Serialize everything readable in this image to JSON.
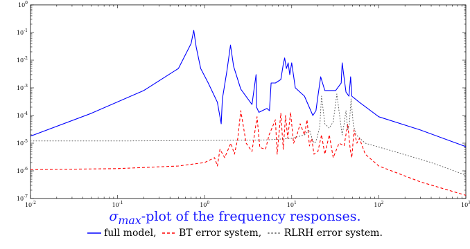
{
  "chart_data": {
    "type": "line",
    "title": "σmax-plot of the frequency responses.",
    "title_parts": {
      "symbol": "σ",
      "subscript": "max",
      "rest": "-plot of the frequency responses."
    },
    "xscale": "log",
    "yscale": "log",
    "xlim": [
      0.01,
      1000
    ],
    "ylim": [
      1e-07,
      1
    ],
    "grid": false,
    "x_tick_labels": [
      {
        "base": "10",
        "exp": "-2"
      },
      {
        "base": "10",
        "exp": "-1"
      },
      {
        "base": "10",
        "exp": "0"
      },
      {
        "base": "10",
        "exp": "1"
      },
      {
        "base": "10",
        "exp": "2"
      },
      {
        "base": "10",
        "exp": "3"
      }
    ],
    "y_tick_labels": [
      {
        "base": "10",
        "exp": "0"
      },
      {
        "base": "10",
        "exp": "-1"
      },
      {
        "base": "10",
        "exp": "-2"
      },
      {
        "base": "10",
        "exp": "-3"
      },
      {
        "base": "10",
        "exp": "-4"
      },
      {
        "base": "10",
        "exp": "-5"
      },
      {
        "base": "10",
        "exp": "-6"
      },
      {
        "base": "10",
        "exp": "-7"
      }
    ],
    "legend_position": "bottom",
    "series": [
      {
        "name": "full model,",
        "color": "#0000ff",
        "dash": "solid",
        "x": [
          0.01,
          0.05,
          0.2,
          0.5,
          0.7,
          0.75,
          0.8,
          0.9,
          1.1,
          1.4,
          1.55,
          1.6,
          1.8,
          1.98,
          2.15,
          2.6,
          3.5,
          3.9,
          3.95,
          4.2,
          5.2,
          5.55,
          5.8,
          6.5,
          7.5,
          8.0,
          8.3,
          8.7,
          9.1,
          9.5,
          10.0,
          11.0,
          14.0,
          17.5,
          19.0,
          20.0,
          21.5,
          24.0,
          32.0,
          37.0,
          38.0,
          42.0,
          45.5,
          47.5,
          49.0,
          60.0,
          100.0,
          300.0,
          1000.0
        ],
        "y": [
          1.8e-05,
          0.00012,
          0.0008,
          0.005,
          0.04,
          0.12,
          0.03,
          0.005,
          0.0015,
          0.0003,
          5e-05,
          0.0004,
          0.004,
          0.035,
          0.006,
          0.0009,
          0.00025,
          0.003,
          0.0002,
          0.00013,
          0.00018,
          0.00015,
          0.0015,
          0.0015,
          0.002,
          0.007,
          0.012,
          0.005,
          0.008,
          0.003,
          0.008,
          0.001,
          0.0005,
          0.0001,
          0.00015,
          0.0005,
          0.0025,
          0.0008,
          0.0008,
          0.0015,
          0.008,
          0.0007,
          0.0005,
          0.0025,
          0.0005,
          0.0003,
          9e-05,
          3e-05,
          7.5e-06
        ]
      },
      {
        "name": "BT error system,",
        "color": "#ff0000",
        "dash": "dashed",
        "x": [
          0.01,
          0.1,
          0.5,
          1.0,
          1.3,
          1.4,
          1.5,
          1.7,
          2.0,
          2.2,
          2.4,
          2.6,
          3.0,
          3.5,
          4.0,
          4.3,
          5.0,
          5.5,
          6.5,
          6.8,
          7.5,
          8.0,
          8.5,
          9.0,
          9.7,
          10.5,
          11.5,
          12.5,
          14.0,
          15.0,
          16.0,
          17.0,
          18.0,
          20.0,
          22.0,
          24.0,
          27.0,
          30.0,
          35.0,
          40.0,
          44.0,
          47.0,
          49.0,
          52.0,
          56.0,
          60.0,
          70.0,
          100.0,
          300.0,
          1000.0
        ],
        "y": [
          1.1e-06,
          1.2e-06,
          1.5e-06,
          2e-06,
          3e-06,
          1.5e-06,
          6e-06,
          3e-06,
          1e-05,
          4e-06,
          1.5e-05,
          0.00015,
          1e-05,
          5e-06,
          9e-05,
          7e-06,
          6e-06,
          2e-05,
          7e-05,
          4e-06,
          0.00012,
          6e-06,
          0.0001,
          1.5e-05,
          0.00013,
          1e-05,
          2e-05,
          5e-05,
          2e-05,
          7e-05,
          8e-06,
          1.5e-05,
          4e-06,
          5e-06,
          2e-05,
          4e-06,
          2e-05,
          3e-06,
          1e-05,
          8e-06,
          5e-05,
          6e-06,
          3e-06,
          3e-05,
          1e-05,
          1.5e-05,
          4e-06,
          1.5e-06,
          4e-07,
          1.3e-07
        ]
      },
      {
        "name": "RLRH error system.",
        "color": "#606060",
        "dash": "dotted",
        "x": [
          0.01,
          0.1,
          1.0,
          5.0,
          10.0,
          14.0,
          16.0,
          17.5,
          18.5,
          19.5,
          21.0,
          22.0,
          24.0,
          27.0,
          30.0,
          33.0,
          36.0,
          38.0,
          40.0,
          42.0,
          44.0,
          46.0,
          48.0,
          51.0,
          55.0,
          70.0,
          150.0,
          400.0,
          1000.0
        ],
        "y": [
          1.2e-05,
          1.2e-05,
          1.25e-05,
          1.3e-05,
          1.5e-05,
          2e-05,
          3e-05,
          1.2e-05,
          1e-05,
          1.5e-05,
          4e-05,
          0.0005,
          5e-05,
          3.5e-05,
          6e-05,
          0.0006,
          7e-05,
          2e-05,
          5e-05,
          0.00015,
          3e-05,
          5e-05,
          0.0004,
          4.5e-05,
          2e-05,
          1e-05,
          5e-06,
          2e-06,
          7e-07
        ]
      }
    ]
  }
}
